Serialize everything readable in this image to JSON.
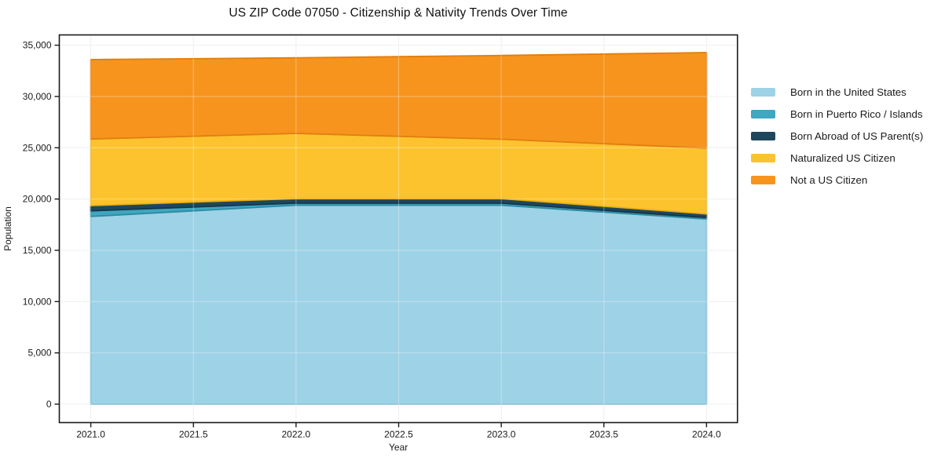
{
  "header": {
    "title": "US ZIP Code 07050 - Citizenship & Nativity Trends Over Time"
  },
  "chart_data": {
    "type": "area",
    "stacked": true,
    "title": "US ZIP Code 07050 - Citizenship & Nativity Trends Over Time",
    "xlabel": "Year",
    "ylabel": "Population",
    "x": [
      2021,
      2022,
      2023,
      2024
    ],
    "xlim": [
      2020.845,
      2024.15
    ],
    "ylim": [
      -1800,
      36000
    ],
    "grid": true,
    "legend_position": "right",
    "xticks": [
      2021.0,
      2021.5,
      2022.0,
      2022.5,
      2023.0,
      2023.5,
      2024.0
    ],
    "xtick_labels": [
      "2021.0",
      "2021.5",
      "2022.0",
      "2022.5",
      "2023.0",
      "2023.5",
      "2024.0"
    ],
    "yticks": [
      0,
      5000,
      10000,
      15000,
      20000,
      25000,
      30000,
      35000
    ],
    "ytick_labels": [
      "0",
      "5,000",
      "10,000",
      "15,000",
      "20,000",
      "25,000",
      "30,000",
      "35,000"
    ],
    "series": [
      {
        "key": "born-in-us",
        "name": "Born in the United States",
        "color": "#9ed2e6",
        "edge": "#74b9d6",
        "values": [
          18300,
          19400,
          19400,
          18050
        ]
      },
      {
        "key": "born-pr-islands",
        "name": "Born in Puerto Rico / Islands",
        "color": "#3fa7c0",
        "edge": "#2e8ba2",
        "values": [
          550,
          200,
          200,
          150
        ]
      },
      {
        "key": "born-abroad",
        "name": "Born Abroad of US Parent(s)",
        "color": "#1f475c",
        "edge": "#143647",
        "values": [
          510,
          440,
          440,
          350
        ]
      },
      {
        "key": "naturalized",
        "name": "Naturalized US Citizen",
        "color": "#fcc32f",
        "edge": "#eaaf12",
        "values": [
          6490,
          6360,
          5790,
          6410
        ]
      },
      {
        "key": "not-citizen",
        "name": "Not a US Citizen",
        "color": "#f7941e",
        "edge": "#e07e0e",
        "values": [
          7750,
          7370,
          8170,
          9320
        ]
      }
    ],
    "totals_by_year": [
      33600,
      33770,
      34000,
      34280
    ]
  }
}
